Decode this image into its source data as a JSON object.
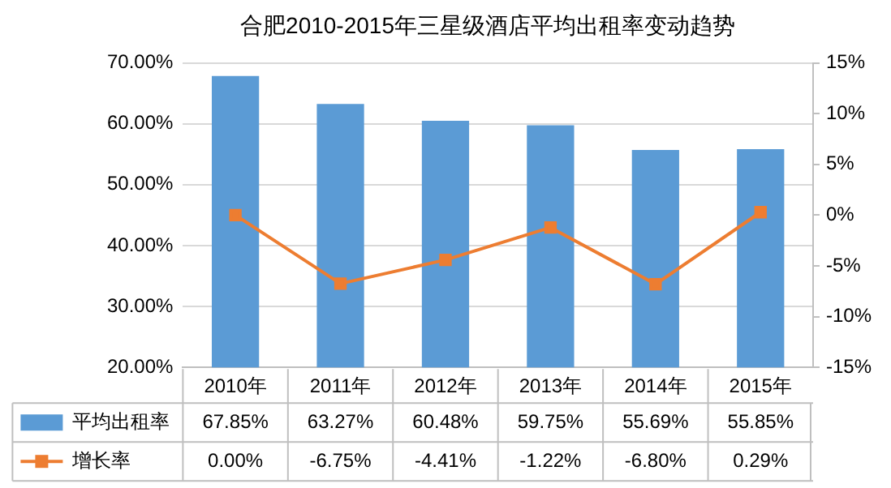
{
  "chart_data": {
    "type": "bar",
    "title": "合肥2010-2015年三星级酒店平均出租率变动趋势",
    "categories": [
      "2010年",
      "2011年",
      "2012年",
      "2013年",
      "2014年",
      "2015年"
    ],
    "series": [
      {
        "name": "平均出租率",
        "color": "#5b9bd5",
        "values": [
          67.85,
          63.27,
          60.48,
          59.75,
          55.69,
          55.85
        ],
        "value_labels": [
          "67.85%",
          "63.27%",
          "60.48%",
          "59.75%",
          "55.69%",
          "55.85%"
        ]
      },
      {
        "name": "增长率",
        "type": "line",
        "axis": "y2",
        "color": "#ed7d31",
        "marker": "square",
        "values": [
          0.0,
          -6.75,
          -4.41,
          -1.22,
          -6.8,
          0.29
        ],
        "value_labels": [
          "0.00%",
          "-6.75%",
          "-4.41%",
          "-1.22%",
          "-6.80%",
          "0.29%"
        ]
      }
    ],
    "ylim": [
      20,
      70
    ],
    "yticks": [
      {
        "value": 20,
        "label": "20.00%"
      },
      {
        "value": 30,
        "label": "30.00%"
      },
      {
        "value": 40,
        "label": "40.00%"
      },
      {
        "value": 50,
        "label": "50.00%"
      },
      {
        "value": 60,
        "label": "60.00%"
      },
      {
        "value": 70,
        "label": "70.00%"
      }
    ],
    "y2lim": [
      -15,
      15
    ],
    "y2ticks": [
      {
        "value": -15,
        "label": "-15%"
      },
      {
        "value": -10,
        "label": "-10%"
      },
      {
        "value": -5,
        "label": "-5%"
      },
      {
        "value": 0,
        "label": "0%"
      },
      {
        "value": 5,
        "label": "5%"
      },
      {
        "value": 10,
        "label": "10%"
      },
      {
        "value": 15,
        "label": "15%"
      }
    ],
    "grid": "y",
    "legend": "bottom"
  }
}
